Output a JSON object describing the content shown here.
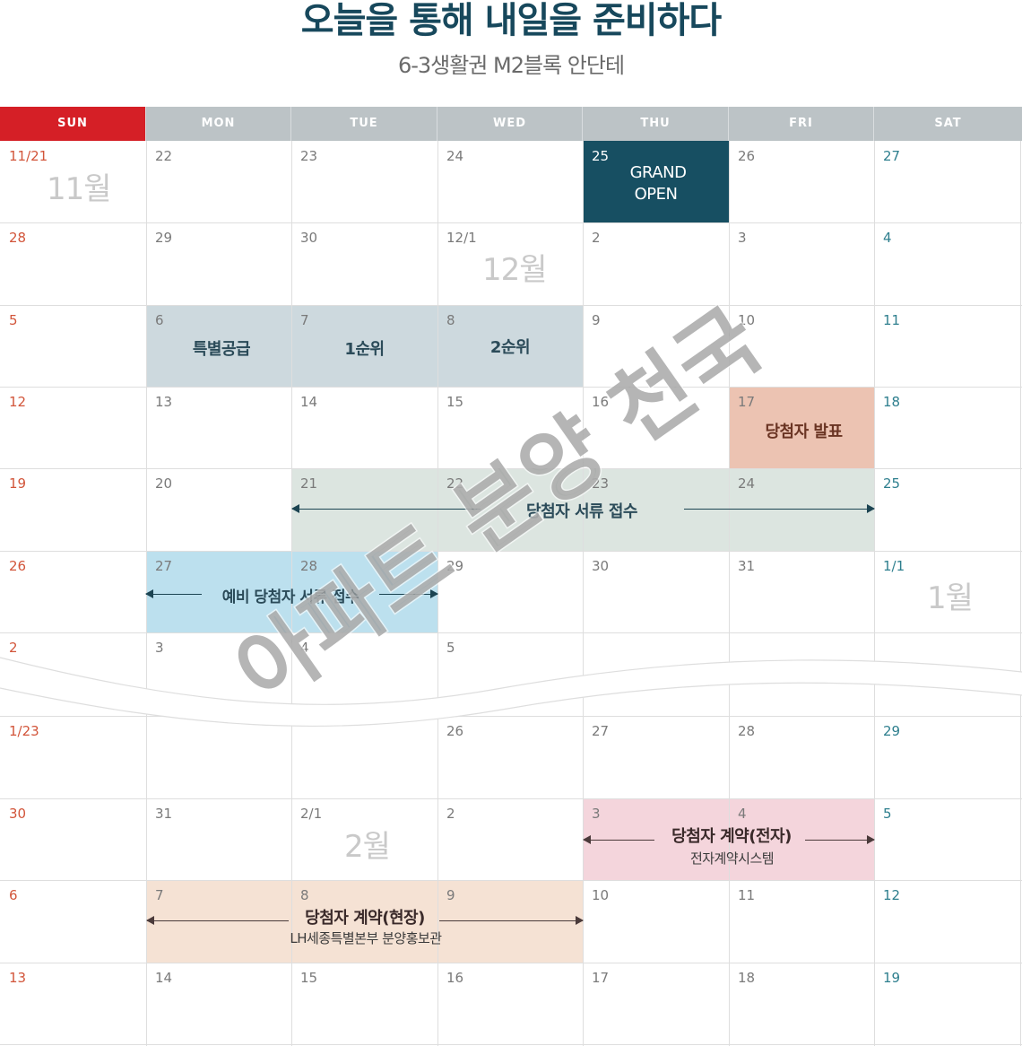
{
  "header": {
    "title": "오늘을 통해 내일을 준비하다",
    "subtitle": "6-3생활권 M2블록 안단테"
  },
  "weekdays": [
    "SUN",
    "MON",
    "TUE",
    "WED",
    "THU",
    "FRI",
    "SAT"
  ],
  "weeks": [
    [
      "11/21",
      "22",
      "23",
      "24",
      "25",
      "26",
      "27"
    ],
    [
      "28",
      "29",
      "30",
      "12/1",
      "2",
      "3",
      "4"
    ],
    [
      "5",
      "6",
      "7",
      "8",
      "9",
      "10",
      "11"
    ],
    [
      "12",
      "13",
      "14",
      "15",
      "16",
      "17",
      "18"
    ],
    [
      "19",
      "20",
      "21",
      "22",
      "23",
      "24",
      "25"
    ],
    [
      "26",
      "27",
      "28",
      "29",
      "30",
      "31",
      "1/1"
    ],
    [
      "2",
      "3",
      "4",
      "5",
      "",
      "",
      ""
    ],
    [
      "1/23",
      "",
      "",
      "26",
      "27",
      "28",
      "29"
    ],
    [
      "30",
      "31",
      "2/1",
      "2",
      "3",
      "4",
      "5"
    ],
    [
      "6",
      "7",
      "8",
      "9",
      "10",
      "11",
      "12"
    ],
    [
      "13",
      "14",
      "15",
      "16",
      "17",
      "18",
      "19"
    ]
  ],
  "months": {
    "nov": "11월",
    "dec": "12월",
    "jan": "1월",
    "feb": "2월"
  },
  "events": {
    "grand_open_line1": "GRAND",
    "grand_open_line2": "OPEN",
    "special_supply": "특별공급",
    "rank1": "1순위",
    "rank2": "2순위",
    "winner_announce": "당첨자 발표",
    "winner_docs": "당첨자 서류 접수",
    "reserve_docs": "예비 당첨자 서류 접수",
    "contract_online": "당첨자 계약(전자)",
    "contract_online_sub": "전자계약시스템",
    "contract_onsite": "당첨자 계약(현장)",
    "contract_onsite_sub": "LH세종특별본부 분양홍보관"
  },
  "watermark": "아파트 분양 천국",
  "colors": {
    "title": "#17485c",
    "sunday_header": "#d51f26",
    "header_bg": "#bcc3c6",
    "grand_open": "#174f62"
  }
}
